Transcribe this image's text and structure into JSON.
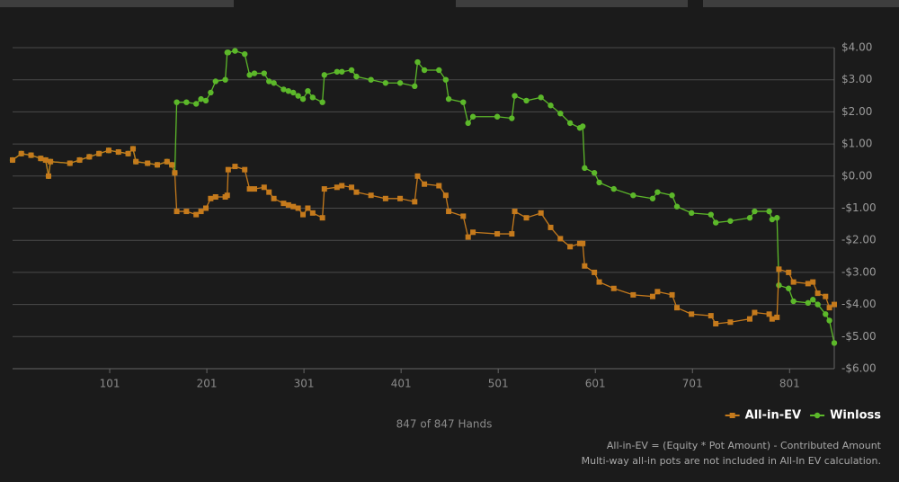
{
  "chart_data": {
    "type": "line",
    "caption": "847 of 847 Hands",
    "notes": [
      "All-in-EV = (Equity * Pot Amount) - Contributed Amount",
      "Multi-way all-in pots are not included in All-In EV calculation."
    ],
    "xlim": [
      1,
      847
    ],
    "xticks": [
      101,
      201,
      301,
      401,
      501,
      601,
      701,
      801
    ],
    "ylim": [
      -6,
      4
    ],
    "yticks": [
      {
        "value": 4,
        "label": "$4.00"
      },
      {
        "value": 3,
        "label": "$3.00"
      },
      {
        "value": 2,
        "label": "$2.00"
      },
      {
        "value": 1,
        "label": "$1.00"
      },
      {
        "value": 0,
        "label": "$0.00"
      },
      {
        "value": -1,
        "label": "-$1.00"
      },
      {
        "value": -2,
        "label": "-$2.00"
      },
      {
        "value": -3,
        "label": "-$3.00"
      },
      {
        "value": -4,
        "label": "-$4.00"
      },
      {
        "value": -5,
        "label": "-$5.00"
      },
      {
        "value": -6,
        "label": "-$6.00"
      }
    ],
    "grid": true,
    "legend": "bottom-right",
    "x": [
      1,
      10,
      20,
      30,
      35,
      38,
      40,
      60,
      70,
      80,
      90,
      100,
      110,
      120,
      125,
      128,
      140,
      150,
      160,
      165,
      168,
      170,
      180,
      190,
      195,
      200,
      205,
      210,
      220,
      222,
      223,
      230,
      240,
      245,
      250,
      260,
      265,
      270,
      280,
      285,
      290,
      295,
      300,
      305,
      310,
      320,
      322,
      335,
      340,
      350,
      355,
      370,
      385,
      400,
      415,
      418,
      425,
      440,
      447,
      450,
      465,
      470,
      475,
      500,
      515,
      518,
      530,
      545,
      555,
      565,
      575,
      585,
      588,
      590,
      600,
      605,
      620,
      640,
      660,
      665,
      680,
      685,
      700,
      720,
      725,
      740,
      760,
      765,
      780,
      783,
      788,
      790,
      800,
      805,
      820,
      825,
      830,
      838,
      842,
      847
    ],
    "series": [
      {
        "name": "All-in-EV",
        "color": "#c57a1c",
        "marker": "square",
        "values": [
          0.5,
          0.7,
          0.65,
          0.55,
          0.5,
          0.0,
          0.45,
          0.4,
          0.5,
          0.6,
          0.7,
          0.8,
          0.75,
          0.7,
          0.85,
          0.45,
          0.4,
          0.35,
          0.45,
          0.35,
          0.1,
          -1.1,
          -1.1,
          -1.2,
          -1.1,
          -1.0,
          -0.7,
          -0.65,
          -0.65,
          -0.6,
          0.2,
          0.3,
          0.2,
          -0.4,
          -0.4,
          -0.35,
          -0.5,
          -0.7,
          -0.85,
          -0.9,
          -0.95,
          -1.0,
          -1.2,
          -1.0,
          -1.15,
          -1.3,
          -0.4,
          -0.35,
          -0.3,
          -0.35,
          -0.5,
          -0.6,
          -0.7,
          -0.7,
          -0.8,
          0.0,
          -0.25,
          -0.3,
          -0.6,
          -1.1,
          -1.25,
          -1.9,
          -1.75,
          -1.8,
          -1.8,
          -1.1,
          -1.3,
          -1.15,
          -1.6,
          -1.95,
          -2.2,
          -2.1,
          -2.1,
          -2.8,
          -3.0,
          -3.3,
          -3.5,
          -3.7,
          -3.75,
          -3.6,
          -3.7,
          -4.1,
          -4.3,
          -4.35,
          -4.6,
          -4.55,
          -4.45,
          -4.25,
          -4.3,
          -4.45,
          -4.4,
          -2.9,
          -3.0,
          -3.3,
          -3.35,
          -3.3,
          -3.65,
          -3.75,
          -4.1,
          -4.0
        ]
      },
      {
        "name": "Winloss",
        "color": "#5cb82a",
        "marker": "circle",
        "values": [
          0.5,
          0.7,
          0.65,
          0.55,
          0.5,
          0.0,
          0.45,
          0.4,
          0.5,
          0.6,
          0.7,
          0.8,
          0.75,
          0.7,
          0.85,
          0.45,
          0.4,
          0.35,
          0.45,
          0.35,
          0.1,
          2.3,
          2.3,
          2.25,
          2.4,
          2.35,
          2.6,
          2.95,
          3.0,
          3.85,
          3.85,
          3.9,
          3.8,
          3.15,
          3.2,
          3.2,
          2.95,
          2.9,
          2.7,
          2.65,
          2.6,
          2.5,
          2.4,
          2.65,
          2.45,
          2.3,
          3.15,
          3.25,
          3.25,
          3.3,
          3.1,
          3.0,
          2.9,
          2.9,
          2.8,
          3.55,
          3.3,
          3.3,
          3.0,
          2.4,
          2.3,
          1.65,
          1.85,
          1.85,
          1.8,
          2.5,
          2.35,
          2.45,
          2.2,
          1.95,
          1.65,
          1.5,
          1.55,
          0.25,
          0.1,
          -0.2,
          -0.4,
          -0.6,
          -0.7,
          -0.5,
          -0.6,
          -0.95,
          -1.15,
          -1.2,
          -1.45,
          -1.4,
          -1.3,
          -1.1,
          -1.1,
          -1.35,
          -1.3,
          -3.4,
          -3.5,
          -3.9,
          -3.95,
          -3.85,
          -4.0,
          -4.3,
          -4.5,
          -5.2
        ]
      }
    ]
  }
}
